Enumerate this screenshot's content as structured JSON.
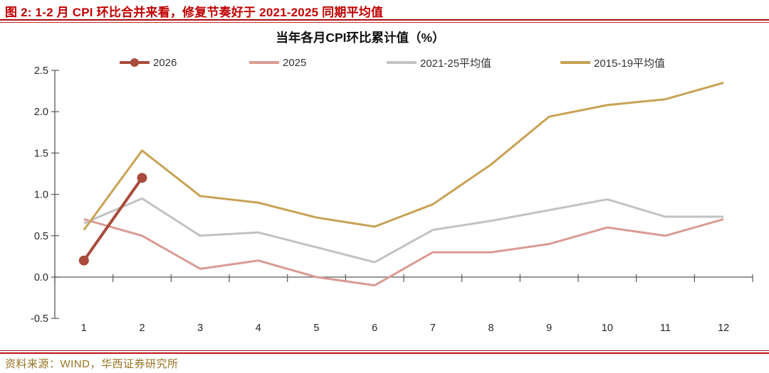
{
  "header": {
    "title": "图 2: 1-2 月 CPI 环比合并来看，修复节奏好于 2021-2025 同期平均值",
    "color": "#C00000"
  },
  "chart_data": {
    "type": "line",
    "title": "当年各月CPI环比累计值（%）",
    "xlabel": "",
    "ylabel": "",
    "x": [
      1,
      2,
      3,
      4,
      5,
      6,
      7,
      8,
      9,
      10,
      11,
      12
    ],
    "ylim": [
      -0.5,
      2.5
    ],
    "ytick_labels": [
      "2.5",
      "2.0",
      "1.5",
      "1.0",
      "0.5",
      "0.0",
      "-0.5"
    ],
    "grid": false,
    "legend_position": "top",
    "axis_color": "#595959",
    "series": [
      {
        "name": "2026",
        "color": "#A84B3C",
        "width": 4,
        "marker": "circle",
        "marker_radius": 7,
        "z": 4,
        "values": [
          0.2,
          1.2
        ]
      },
      {
        "name": "2025",
        "color": "#D99B93",
        "width": 3,
        "z": 1,
        "values": [
          0.7,
          0.5,
          0.1,
          0.2,
          0.0,
          -0.1,
          0.3,
          0.3,
          0.4,
          0.6,
          0.5,
          0.7
        ]
      },
      {
        "name": "2021-25平均值",
        "color": "#C2C2C2",
        "width": 3,
        "z": 2,
        "values": [
          0.65,
          0.95,
          0.5,
          0.54,
          0.36,
          0.18,
          0.57,
          0.68,
          0.81,
          0.94,
          0.73,
          0.73
        ]
      },
      {
        "name": "2015-19平均值",
        "color": "#C8A254",
        "width": 3,
        "z": 3,
        "values": [
          0.57,
          1.53,
          0.98,
          0.9,
          0.72,
          0.61,
          0.88,
          1.36,
          1.94,
          2.08,
          2.15,
          2.35
        ]
      }
    ]
  },
  "footer": {
    "source": "资料来源：WIND，华西证券研究所",
    "color": "#96731F"
  }
}
